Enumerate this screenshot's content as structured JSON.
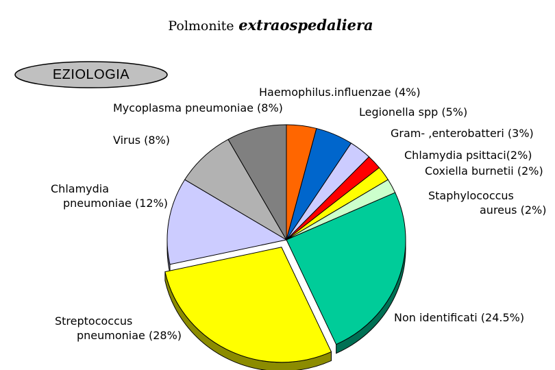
{
  "title": {
    "part1": "Polmonite",
    "part2": "extraospedaliera"
  },
  "badge": {
    "label": "EZIOLOGIA",
    "fill": "#c0c0c0"
  },
  "chart_data": {
    "type": "pie",
    "title": "Polmonite extraospedaliera",
    "unit": "%",
    "slices": [
      {
        "name": "Haemophilus.influenzae",
        "value": 4,
        "label_lines": [
          "Haemophilus.influenzae (4%)"
        ],
        "color": "#ff6600"
      },
      {
        "name": "Legionella spp",
        "value": 5,
        "label_lines": [
          "Legionella spp (5%)"
        ],
        "color": "#0066cc"
      },
      {
        "name": "Gram- ,enterobatteri",
        "value": 3,
        "label_lines": [
          "Gram- ,enterobatteri (3%)"
        ],
        "color": "#ccccff"
      },
      {
        "name": "Chlamydia psittaci",
        "value": 2,
        "label_lines": [
          "Chlamydia psittaci(2%)"
        ],
        "color": "#ff0000"
      },
      {
        "name": "Coxiella burnetii",
        "value": 2,
        "label_lines": [
          "Coxiella burnetii (2%)"
        ],
        "color": "#ffff00"
      },
      {
        "name": "Staphylococcus aureus",
        "value": 2,
        "label_lines": [
          "Staphylococcus",
          "aureus (2%)"
        ],
        "color": "#ccffcc"
      },
      {
        "name": "Non identificati",
        "value": 24.5,
        "label_lines": [
          "Non identificati (24.5%)"
        ],
        "color": "#00cc99"
      },
      {
        "name": "Streptococcus pneumoniae",
        "value": 28,
        "label_lines": [
          "Streptococcus",
          "pneumoniae (28%)"
        ],
        "color": "#ffff00",
        "exploded": true
      },
      {
        "name": "Chlamydia pneumoniae",
        "value": 12,
        "label_lines": [
          "Chlamydia",
          "pneumoniae (12%)"
        ],
        "color": "#ccccff"
      },
      {
        "name": "Virus",
        "value": 8,
        "label_lines": [
          "Virus (8%)"
        ],
        "color": "#b2b2b2"
      },
      {
        "name": "Mycoplasma pneumoniae",
        "value": 8,
        "label_lines": [
          "Mycoplasma pneumoniae (8%)"
        ],
        "color": "#808080"
      }
    ]
  }
}
